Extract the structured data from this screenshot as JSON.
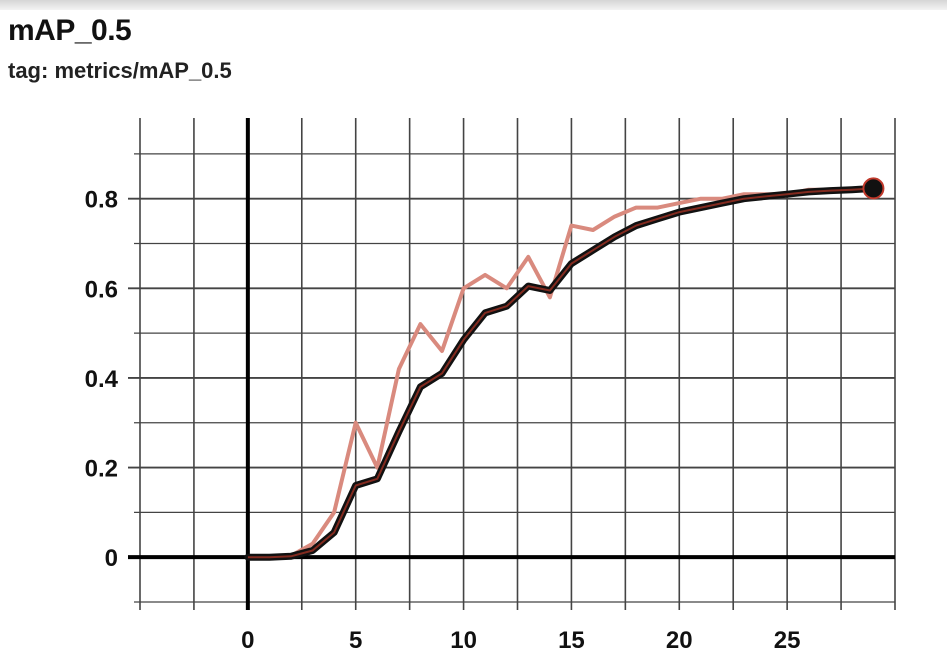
{
  "card": {
    "title": "mAP_0.5",
    "tag": "tag: metrics/mAP_0.5"
  },
  "chart_data": {
    "type": "line",
    "xlim": [
      -5,
      30
    ],
    "ylim": [
      -0.1,
      0.98
    ],
    "x_ticks": [
      0,
      5,
      10,
      15,
      20,
      25
    ],
    "y_ticks": [
      0,
      0.2,
      0.4,
      0.6,
      0.8
    ],
    "x_tick_labels": [
      "0",
      "5",
      "10",
      "15",
      "20",
      "25"
    ],
    "y_tick_labels": [
      "0",
      "0.2",
      "0.4",
      "0.6",
      "0.8"
    ],
    "grid": true,
    "series": [
      {
        "role": "raw",
        "color": "#d98a7e",
        "x": [
          0,
          1,
          2,
          3,
          4,
          5,
          6,
          7,
          8,
          9,
          10,
          11,
          12,
          13,
          14,
          15,
          16,
          17,
          18,
          19,
          20,
          21,
          22,
          23,
          24,
          25,
          26,
          27,
          28,
          29
        ],
        "values": [
          0,
          0,
          0.003,
          0.03,
          0.1,
          0.3,
          0.2,
          0.42,
          0.52,
          0.46,
          0.6,
          0.63,
          0.6,
          0.67,
          0.58,
          0.74,
          0.73,
          0.76,
          0.78,
          0.78,
          0.79,
          0.8,
          0.8,
          0.81,
          0.81,
          0.81,
          0.82,
          0.82,
          0.82,
          0.825
        ]
      },
      {
        "role": "smoothed",
        "color": "#111111",
        "x": [
          0,
          1,
          2,
          3,
          4,
          5,
          6,
          7,
          8,
          9,
          10,
          11,
          12,
          13,
          14,
          15,
          16,
          17,
          18,
          19,
          20,
          21,
          22,
          23,
          24,
          25,
          26,
          27,
          28,
          29
        ],
        "values": [
          0,
          0,
          0.002,
          0.015,
          0.055,
          0.16,
          0.175,
          0.28,
          0.38,
          0.41,
          0.485,
          0.545,
          0.56,
          0.605,
          0.595,
          0.655,
          0.685,
          0.715,
          0.74,
          0.755,
          0.77,
          0.78,
          0.79,
          0.8,
          0.805,
          0.81,
          0.815,
          0.818,
          0.82,
          0.823
        ]
      }
    ],
    "highlight": {
      "x": 29,
      "y": 0.823,
      "color": "#111111",
      "ring": "#c0392b"
    },
    "colors": {
      "raw": "#d98a7e",
      "smoothed": "#111111",
      "overlay": "#e0402b",
      "grid": "#444444"
    }
  }
}
